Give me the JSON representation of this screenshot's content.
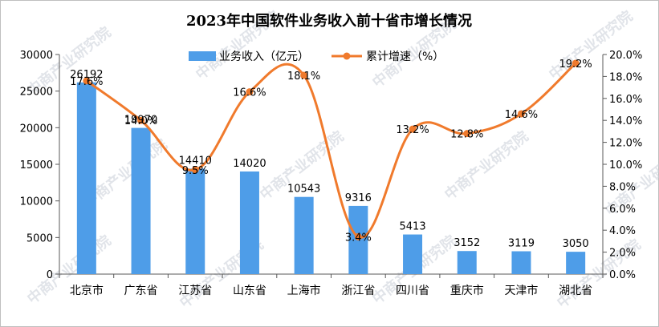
{
  "watermark": "中商产业研究院",
  "chart_data": {
    "type": "bar",
    "title": "2023年中国软件业务收入前十省市增长情况",
    "categories": [
      "北京市",
      "广东省",
      "江苏省",
      "山东省",
      "上海市",
      "浙江省",
      "四川省",
      "重庆市",
      "天津市",
      "湖北省"
    ],
    "series": [
      {
        "name": "业务收入（亿元）",
        "type": "bar",
        "axis": "left",
        "color": "#4e9de8",
        "values": [
          26192,
          19970,
          14410,
          14020,
          10543,
          9316,
          5413,
          3152,
          3119,
          3050
        ],
        "labels": [
          "26192",
          "19970",
          "14410",
          "14020",
          "10543",
          "9316",
          "5413",
          "3152",
          "3119",
          "3050"
        ]
      },
      {
        "name": "累计增速（%）",
        "type": "line",
        "axis": "right",
        "color": "#f07a2c",
        "values": [
          17.6,
          14.0,
          9.5,
          16.6,
          18.1,
          3.4,
          13.2,
          12.8,
          14.6,
          19.2
        ],
        "labels": [
          "17.6%",
          "14.0%",
          "9.5%",
          "16.6%",
          "18.1%",
          "3.4%",
          "13.2%",
          "12.8%",
          "14.6%",
          "19.2%"
        ]
      }
    ],
    "y_left": {
      "min": 0,
      "max": 30000,
      "ticks": [
        "0",
        "5000",
        "10000",
        "15000",
        "20000",
        "25000",
        "30000"
      ]
    },
    "y_right": {
      "min": 0,
      "max": 20,
      "ticks": [
        "0.0%",
        "2.0%",
        "4.0%",
        "6.0%",
        "8.0%",
        "10.0%",
        "12.0%",
        "14.0%",
        "16.0%",
        "18.0%",
        "20.0%"
      ]
    },
    "legend_position": "top"
  }
}
